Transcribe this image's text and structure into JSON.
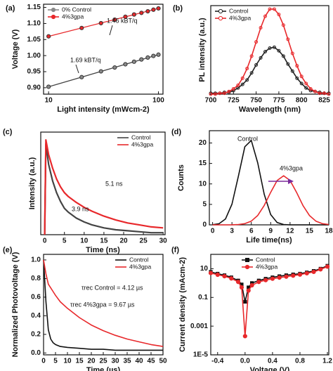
{
  "chart_data": [
    {
      "type": "scatter",
      "label": "(a)",
      "xlabel": "Light intensity (mWcm-2)",
      "ylabel": "Voltage (V)",
      "xscale": "log",
      "xlim": [
        9,
        110
      ],
      "xticks": [
        10,
        100
      ],
      "ylim": [
        0.88,
        1.16
      ],
      "yticks": [
        {
          "value": 0.9,
          "label": "0.90"
        },
        {
          "value": 0.95,
          "label": "0.95"
        },
        {
          "value": 1.0,
          "label": "1.00"
        },
        {
          "value": 1.05,
          "label": "1.05"
        },
        {
          "value": 1.1,
          "label": "1.10"
        },
        {
          "value": 1.15,
          "label": "1.15"
        }
      ],
      "legend": "upper left",
      "x": [
        10,
        20,
        30,
        40,
        50,
        60,
        70,
        80,
        90,
        100
      ],
      "series": [
        {
          "name": "0% Control",
          "color": "#8a8a8a",
          "marker": "circle",
          "values": [
            0.903,
            0.933,
            0.951,
            0.963,
            0.973,
            0.981,
            0.988,
            0.994,
            0.999,
            1.003
          ]
        },
        {
          "name": "4%3gpa",
          "color": "#e8282b",
          "marker": "circle",
          "values": [
            1.06,
            1.086,
            1.101,
            1.112,
            1.121,
            1.128,
            1.133,
            1.138,
            1.143,
            1.147
          ]
        }
      ],
      "fits": [
        {
          "color": "#444444",
          "x": [
            10,
            100
          ],
          "values": [
            0.903,
            1.003
          ]
        },
        {
          "color": "#e8282b",
          "x": [
            10,
            100
          ],
          "values": [
            1.06,
            1.147
          ]
        }
      ],
      "annotations": [
        {
          "text": "1.46 kBT/q",
          "color": "#222222"
        },
        {
          "text": "1.69 kBT/q",
          "color": "#222222"
        }
      ]
    },
    {
      "type": "line",
      "label": "(b)",
      "xlabel": "Wavelength (nm)",
      "ylabel": "PL intensity (a.u.)",
      "xlim": [
        700,
        830
      ],
      "xticks": [
        700,
        725,
        750,
        775,
        800,
        825
      ],
      "ylim": [
        0,
        1
      ],
      "legend": "upper left",
      "x": [
        700,
        705,
        710,
        715,
        720,
        725,
        730,
        735,
        740,
        745,
        750,
        755,
        760,
        765,
        770,
        775,
        780,
        785,
        790,
        795,
        800,
        805,
        810,
        815,
        820,
        825,
        830
      ],
      "series": [
        {
          "name": "Control",
          "color": "#222222",
          "marker": "circle-open",
          "values": [
            0.01,
            0.01,
            0.01,
            0.02,
            0.02,
            0.04,
            0.07,
            0.11,
            0.16,
            0.24,
            0.33,
            0.41,
            0.48,
            0.52,
            0.53,
            0.49,
            0.43,
            0.34,
            0.26,
            0.18,
            0.12,
            0.07,
            0.04,
            0.03,
            0.02,
            0.01,
            0.01
          ]
        },
        {
          "name": "4%3gpa",
          "color": "#e8282b",
          "marker": "circle-open",
          "values": [
            0,
            0,
            0.01,
            0.01,
            0.03,
            0.06,
            0.1,
            0.18,
            0.29,
            0.43,
            0.59,
            0.75,
            0.88,
            0.96,
            0.96,
            0.9,
            0.78,
            0.62,
            0.46,
            0.32,
            0.2,
            0.12,
            0.06,
            0.03,
            0.01,
            0.01,
            0
          ]
        }
      ]
    },
    {
      "type": "line",
      "label": "(c)",
      "xlabel": "Time (ns)",
      "ylabel": "Intensity (a.u.)",
      "xlim": [
        -1,
        30.5
      ],
      "xticks": [
        0,
        5,
        10,
        15,
        20,
        25,
        30
      ],
      "ylim": [
        0,
        1.05
      ],
      "legend": "upper right",
      "x": [
        0,
        0.3,
        1,
        2,
        3,
        4,
        5,
        6,
        8,
        10,
        12,
        15,
        18,
        21,
        24,
        27,
        30
      ],
      "series": [
        {
          "name": "Control",
          "color": "#444444",
          "values": [
            0,
            0.93,
            0.72,
            0.55,
            0.43,
            0.34,
            0.27,
            0.23,
            0.17,
            0.13,
            0.1,
            0.07,
            0.05,
            0.04,
            0.03,
            0.02,
            0.02
          ]
        },
        {
          "name": "4%3gpa",
          "color": "#e8282b",
          "values": [
            0,
            0.97,
            0.82,
            0.68,
            0.57,
            0.49,
            0.43,
            0.39,
            0.33,
            0.28,
            0.24,
            0.19,
            0.15,
            0.12,
            0.1,
            0.08,
            0.07
          ]
        }
      ],
      "annotations": [
        {
          "text": "5.1 ns",
          "color": "#e8282b"
        },
        {
          "text": "3.9 ns",
          "color": "#222222"
        }
      ]
    },
    {
      "type": "line",
      "label": "(d)",
      "xlabel": "Life time(ns)",
      "ylabel": "Counts",
      "xlim": [
        -0.5,
        18
      ],
      "xticks": [
        0,
        3,
        6,
        9,
        12,
        15,
        18
      ],
      "ylim": [
        0,
        23
      ],
      "yticks": [
        0,
        5,
        10,
        15,
        20
      ],
      "x": [
        0,
        1,
        2,
        3,
        4,
        5,
        6,
        7,
        8,
        9,
        10,
        11,
        12,
        13,
        14,
        15,
        16,
        17,
        18
      ],
      "series": [
        {
          "color": "#111111",
          "values": [
            0.04,
            0.28,
            1.45,
            5.06,
            11.94,
            19.08,
            20.63,
            15.1,
            7.46,
            2.5,
            0.57,
            0.09,
            0,
            0,
            0,
            0,
            0,
            0,
            0
          ]
        },
        {
          "color": "#e8282b",
          "values": [
            0,
            0,
            0,
            0.01,
            0.08,
            0.29,
            0.91,
            2.3,
            4.73,
            7.95,
            10.83,
            12,
            10.83,
            7.95,
            4.73,
            2.3,
            0.91,
            0.29,
            0.08
          ]
        }
      ],
      "annotations": [
        {
          "text": "Control",
          "color": "#111111"
        },
        {
          "text": "4%3gpa",
          "color": "#e8282b"
        }
      ]
    },
    {
      "type": "line",
      "label": "(e)",
      "xlabel": "Time (µs)",
      "ylabel": "Normalized Photovoltage (V)",
      "xlim": [
        0,
        50
      ],
      "xticks": [
        0,
        5,
        10,
        15,
        20,
        25,
        30,
        35,
        40,
        45,
        50
      ],
      "ylim": [
        -0.02,
        1.06
      ],
      "yticks": [
        {
          "value": 0,
          "label": "0.0"
        },
        0.2,
        0.4,
        0.6,
        0.8,
        {
          "value": 1,
          "label": "1.0"
        }
      ],
      "legend": "upper right",
      "x": [
        0,
        1,
        2,
        3,
        4,
        5,
        7,
        10,
        15,
        20,
        25,
        30,
        35,
        40,
        45,
        50
      ],
      "series": [
        {
          "name": "Control",
          "color": "#111111",
          "values": [
            1,
            0.55,
            0.25,
            0.15,
            0.11,
            0.09,
            0.07,
            0.06,
            0.05,
            0.04,
            0.04,
            0.03,
            0.03,
            0.03,
            0.03,
            0.03
          ]
        },
        {
          "name": "4%3gpa",
          "color": "#e8282b",
          "values": [
            1,
            0.85,
            0.74,
            0.7,
            0.66,
            0.62,
            0.55,
            0.48,
            0.38,
            0.3,
            0.24,
            0.19,
            0.15,
            0.12,
            0.09,
            0.07
          ]
        }
      ],
      "annotations": [
        {
          "text": "τrec Control = 4.12 µs",
          "color": "#111111"
        },
        {
          "text": "τrec 4%3gpa = 9.67 µs",
          "color": "#e8282b"
        }
      ]
    },
    {
      "type": "line",
      "label": "(f)",
      "xlabel": "Voltage (V)",
      "ylabel": "Current density (mAcm-2)",
      "xlim": [
        -0.5,
        1.22
      ],
      "xticks": [
        -0.4,
        {
          "value": 0,
          "label": "0.0"
        },
        0.4,
        0.8,
        1.2
      ],
      "yscale": "log",
      "ylim": [
        1e-05,
        100
      ],
      "yticks": [
        {
          "value": 1e-05,
          "label": "1E-5"
        },
        0.001,
        0.1,
        10
      ],
      "legend": "upper center",
      "x": [
        -0.5,
        -0.4,
        -0.3,
        -0.2,
        -0.1,
        -0.05,
        0,
        0.05,
        0.1,
        0.2,
        0.3,
        0.4,
        0.5,
        0.6,
        0.7,
        0.8,
        0.9,
        1.0,
        1.1,
        1.2
      ],
      "series": [
        {
          "name": "Control",
          "color": "#111111",
          "marker": "square",
          "values": [
            6,
            4.5,
            3.5,
            2.5,
            1.5,
            0.8,
            0.05,
            0.5,
            1,
            1.5,
            2,
            2.5,
            3,
            3.5,
            4,
            4.5,
            5.5,
            7,
            10,
            16
          ]
        },
        {
          "name": "4%3gpa",
          "color": "#e8282b",
          "marker": "circle",
          "values": [
            5,
            3.8,
            3,
            2.1,
            1.2,
            0.5,
            0.0002,
            0.3,
            0.7,
            1.2,
            1.6,
            2,
            2.4,
            2.8,
            3.3,
            3.9,
            4.8,
            6,
            9,
            14
          ]
        }
      ]
    }
  ]
}
